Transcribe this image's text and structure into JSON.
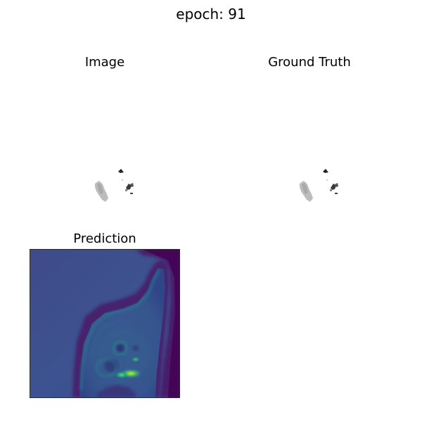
{
  "figure": {
    "suptitle": "epoch: 91"
  },
  "panels": {
    "image": {
      "title": "Image"
    },
    "ground_truth": {
      "title": "Ground Truth"
    },
    "prediction": {
      "title": "Prediction"
    }
  },
  "colors": {
    "background": "#ffffff",
    "mask_light_gray": "#b9b9b9",
    "mask_dark": "#2a2a2a",
    "viridis_dark": "#440154",
    "viridis_blue": "#3b528b",
    "viridis_teal": "#21918c",
    "viridis_green": "#5ec962",
    "viridis_yellow": "#fde725"
  }
}
